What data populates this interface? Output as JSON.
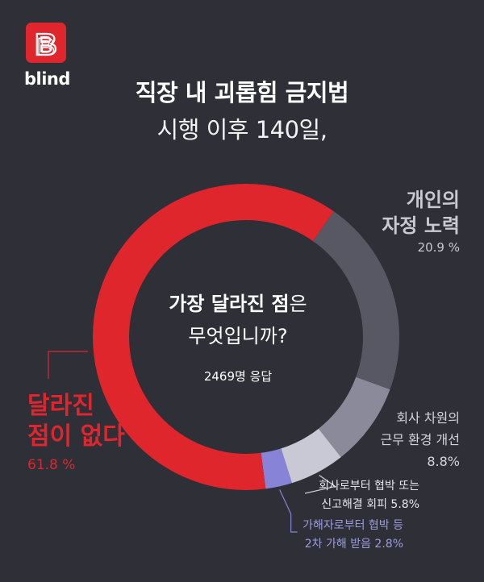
{
  "brand": {
    "logo_letter": "B",
    "wordmark": "blind"
  },
  "header": {
    "title_line1": "직장 내 괴롭힘 금지법",
    "title_line2": "시행 이후 140일,"
  },
  "center": {
    "question_bold": "가장 달라진 점",
    "question_rest": "은",
    "question_line2": "무엇입니까?",
    "respondents": "2469명 응답"
  },
  "labels": {
    "personal_line1": "개인의",
    "personal_line2": "자정 노력",
    "personal_pct": "20.9 %",
    "shift_line1": "회사 차원의",
    "shift_line2": "근무 환경 개선",
    "shift_pct": "8.8%",
    "report_line1": "회사로부터 협박 또는",
    "report_line2": "신고해결 회피 5.8%",
    "victim_line1": "가해자로부터 협박 등",
    "victim_line2": "2차 가해 받음 2.8%",
    "nochange_line1": "달라진",
    "nochange_line2": "점이 없다",
    "nochange_pct": "61.8 %"
  },
  "chart_data": {
    "type": "pie",
    "title": "직장 내 괴롭힘 금지법 시행 이후 140일, 가장 달라진 점은 무엇입니까?",
    "note": "2469명 응답",
    "unit": "%",
    "slices": [
      {
        "label": "개인의 자정 노력",
        "value": 20.9,
        "color": "#585865"
      },
      {
        "label": "회사 차원의 근무 환경 개선",
        "value": 8.8,
        "color": "#8a8a9b"
      },
      {
        "label": "회사로부터 협박 또는 신고해결 회피",
        "value": 5.8,
        "color": "#c9c9d5"
      },
      {
        "label": "가해자로부터 협박 등 2차 가해 받음",
        "value": 2.8,
        "color": "#8784d8"
      },
      {
        "label": "달라진 점이 없다",
        "value": 61.8,
        "color": "#e0262d"
      }
    ],
    "start_angle_deg": 34.9,
    "direction": "clockwise",
    "donut": true
  }
}
